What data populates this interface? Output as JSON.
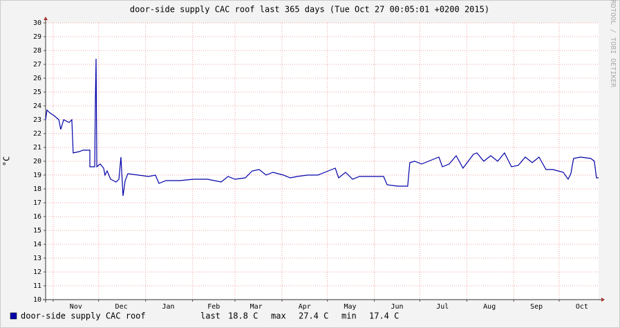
{
  "chart_data": {
    "type": "line",
    "title": "door-side supply CAC roof last 365 days (Tue Oct 27 00:05:01 +0200 2015)",
    "y_label": "°C",
    "watermark": "RRDTOOL / TOBI OETIKER",
    "xlim": [
      0,
      365
    ],
    "ylim": [
      10,
      30
    ],
    "yticks": [
      10,
      11,
      12,
      13,
      14,
      15,
      16,
      17,
      18,
      19,
      20,
      21,
      22,
      23,
      24,
      25,
      26,
      27,
      28,
      29,
      30
    ],
    "xticks": [
      {
        "value": 20,
        "label": "Nov"
      },
      {
        "value": 50,
        "label": "Dec"
      },
      {
        "value": 81,
        "label": "Jan"
      },
      {
        "value": 111,
        "label": "Feb"
      },
      {
        "value": 139,
        "label": "Mar"
      },
      {
        "value": 171,
        "label": "Apr"
      },
      {
        "value": 201,
        "label": "May"
      },
      {
        "value": 232,
        "label": "Jun"
      },
      {
        "value": 262,
        "label": "Jul"
      },
      {
        "value": 293,
        "label": "Aug"
      },
      {
        "value": 324,
        "label": "Sep"
      },
      {
        "value": 354,
        "label": "Oct"
      }
    ],
    "x_grid": [
      5,
      35,
      66,
      97,
      125,
      156,
      186,
      217,
      247,
      278,
      309,
      339
    ],
    "grid": true,
    "series": [
      {
        "name": "door-side supply CAC roof",
        "color": "#0000a8",
        "x": [
          0,
          0.9,
          2.7,
          5.5,
          8.7,
          10,
          11.9,
          15.5,
          17.3,
          18.2,
          22.4,
          24.6,
          29.2,
          29.2,
          32.4,
          32.8,
          33.3,
          33.8,
          36,
          38.3,
          39.2,
          40.6,
          42.9,
          46.5,
          48.4,
          49.7,
          51.1,
          52.5,
          54.3,
          61.1,
          68,
          72.5,
          74.8,
          79.4,
          88.5,
          97.6,
          106.8,
          115.9,
          120.4,
          125,
          131.8,
          136.4,
          141,
          145.5,
          150.1,
          156.9,
          161.5,
          166.1,
          172.9,
          179.7,
          186.6,
          191.2,
          193.4,
          198,
          202.6,
          207.1,
          216.2,
          223.1,
          225.4,
          232.2,
          239,
          240.4,
          243.6,
          248.2,
          252.7,
          259.6,
          261.9,
          266.4,
          271,
          275.5,
          282.4,
          284.7,
          289.2,
          293.8,
          298.4,
          302.9,
          307.5,
          312,
          316.6,
          321.2,
          325.7,
          330.3,
          334.9,
          341.7,
          344.9,
          346.7,
          348.5,
          353.1,
          359.9,
          362.2,
          363.6,
          365
        ],
        "values": [
          23.0,
          23.7,
          23.5,
          23.3,
          23.0,
          22.3,
          23.0,
          22.8,
          23.0,
          20.6,
          20.7,
          20.8,
          20.8,
          19.6,
          19.6,
          24.0,
          27.4,
          19.6,
          19.8,
          19.5,
          19.0,
          19.3,
          18.7,
          18.5,
          18.7,
          20.3,
          17.5,
          18.6,
          19.1,
          19.0,
          18.9,
          19.0,
          18.4,
          18.6,
          18.6,
          18.7,
          18.7,
          18.5,
          18.9,
          18.7,
          18.8,
          19.3,
          19.4,
          19.0,
          19.2,
          19.0,
          18.8,
          18.9,
          19.0,
          19.0,
          19.3,
          19.5,
          18.8,
          19.2,
          18.7,
          18.9,
          18.9,
          18.9,
          18.3,
          18.2,
          18.2,
          19.9,
          20.0,
          19.8,
          20.0,
          20.3,
          19.6,
          19.8,
          20.4,
          19.5,
          20.5,
          20.6,
          20.0,
          20.4,
          20.0,
          20.6,
          19.6,
          19.7,
          20.3,
          19.9,
          20.3,
          19.4,
          19.4,
          19.2,
          18.7,
          19.1,
          20.2,
          20.3,
          20.2,
          20.0,
          18.8,
          18.8
        ]
      }
    ],
    "legend_stats": [
      {
        "label": "last",
        "value": "18.8 C"
      },
      {
        "label": "max",
        "value": "27.4 C"
      },
      {
        "label": "min",
        "value": "17.4 C"
      }
    ]
  }
}
